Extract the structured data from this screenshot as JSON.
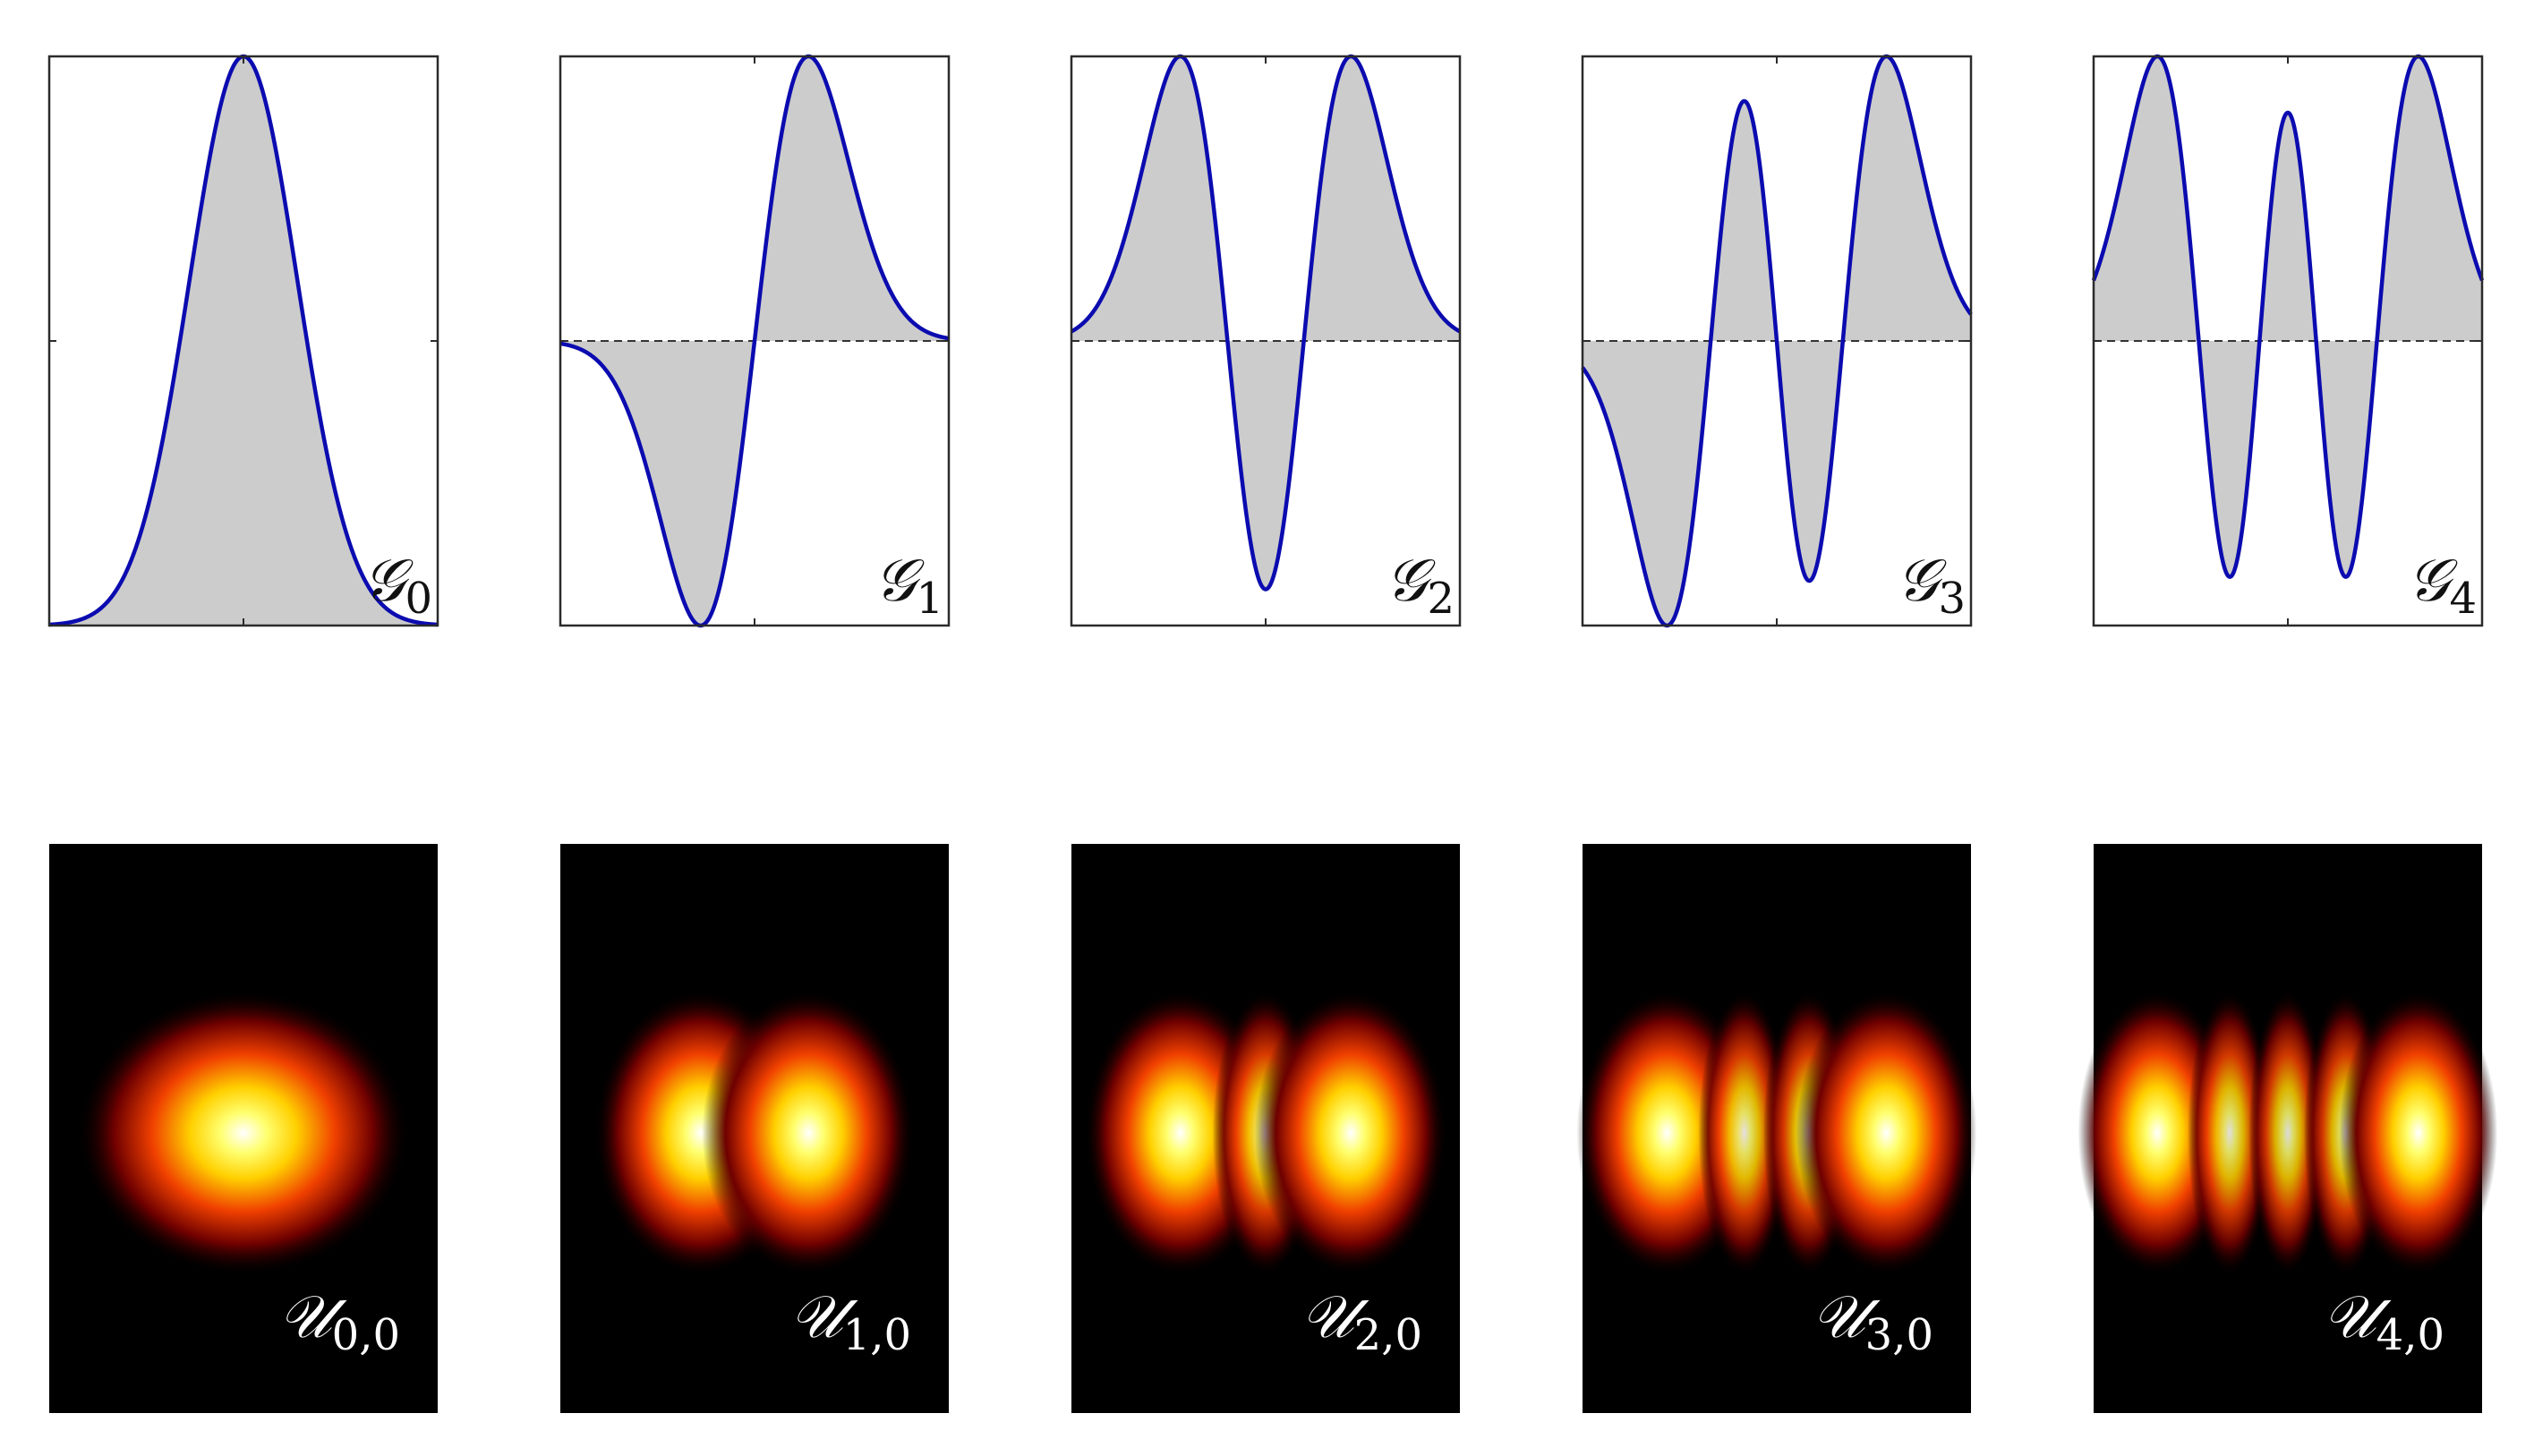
{
  "colors": {
    "curve": "#0b0bb0",
    "fill": "#cccccc",
    "frame": "#2b2b2b",
    "baseline": "#333333",
    "heatmap_background": "#000000",
    "heatmap_label": "#ffffff"
  },
  "chart_data": [
    {
      "type": "area",
      "plot": "hermite-gaussian-1d",
      "order": 0,
      "label_main": "𝒢",
      "label_sub": "0",
      "x_range": [
        -3.6,
        3.6
      ],
      "y_range": "normalized",
      "grid": false,
      "baseline": "dashed",
      "fill": "gray",
      "legend": "none"
    },
    {
      "type": "area",
      "plot": "hermite-gaussian-1d",
      "order": 1,
      "label_main": "𝒢",
      "label_sub": "1",
      "x_range": [
        -3.6,
        3.6
      ],
      "y_range": "normalized",
      "grid": false,
      "baseline": "dashed",
      "fill": "gray",
      "legend": "none"
    },
    {
      "type": "area",
      "plot": "hermite-gaussian-1d",
      "order": 2,
      "label_main": "𝒢",
      "label_sub": "2",
      "x_range": [
        -3.6,
        3.6
      ],
      "y_range": "normalized",
      "grid": false,
      "baseline": "dashed",
      "fill": "gray",
      "legend": "none"
    },
    {
      "type": "area",
      "plot": "hermite-gaussian-1d",
      "order": 3,
      "label_main": "𝒢",
      "label_sub": "3",
      "x_range": [
        -3.6,
        3.6
      ],
      "y_range": "normalized",
      "grid": false,
      "baseline": "dashed",
      "fill": "gray",
      "legend": "none"
    },
    {
      "type": "area",
      "plot": "hermite-gaussian-1d",
      "order": 4,
      "label_main": "𝒢",
      "label_sub": "4",
      "x_range": [
        -3.6,
        3.6
      ],
      "y_range": "normalized",
      "grid": false,
      "baseline": "dashed",
      "fill": "gray",
      "legend": "none"
    },
    {
      "type": "heatmap",
      "plot": "hermite-gaussian-intensity",
      "order": 0,
      "label_main": "𝒰",
      "label_sub": "0,0",
      "colormap": "hot"
    },
    {
      "type": "heatmap",
      "plot": "hermite-gaussian-intensity",
      "order": 1,
      "label_main": "𝒰",
      "label_sub": "1,0",
      "colormap": "hot"
    },
    {
      "type": "heatmap",
      "plot": "hermite-gaussian-intensity",
      "order": 2,
      "label_main": "𝒰",
      "label_sub": "2,0",
      "colormap": "hot"
    },
    {
      "type": "heatmap",
      "plot": "hermite-gaussian-intensity",
      "order": 3,
      "label_main": "𝒰",
      "label_sub": "3,0",
      "colormap": "hot"
    },
    {
      "type": "heatmap",
      "plot": "hermite-gaussian-intensity",
      "order": 4,
      "label_main": "𝒰",
      "label_sub": "4,0",
      "colormap": "hot"
    }
  ]
}
